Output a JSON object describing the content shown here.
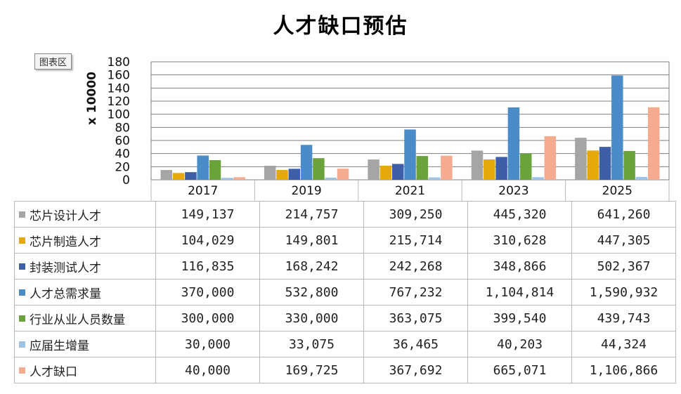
{
  "title": "人才缺口预估",
  "chart_area_label": "图表区",
  "chart_data": {
    "type": "bar",
    "title": "人才缺口预估",
    "ylabel": "x 10000",
    "ylim": [
      0,
      180
    ],
    "yticks": [
      0,
      20,
      40,
      60,
      80,
      100,
      120,
      140,
      160,
      180
    ],
    "grid": true,
    "categories": [
      "2017",
      "2019",
      "2021",
      "2023",
      "2025"
    ],
    "series": [
      {
        "name": "芯片设计人才",
        "color": "#a5a5a5",
        "values": [
          149137,
          214757,
          309250,
          445320,
          641260
        ],
        "display": [
          "149,137",
          "214,757",
          "309,250",
          "445,320",
          "641,260"
        ]
      },
      {
        "name": "芯片制造人才",
        "color": "#e6a90c",
        "values": [
          104029,
          149801,
          215714,
          310628,
          447305
        ],
        "display": [
          "104,029",
          "149,801",
          "215,714",
          "310,628",
          "447,305"
        ]
      },
      {
        "name": "封装测试人才",
        "color": "#3e5fa8",
        "values": [
          116835,
          168242,
          242268,
          348866,
          502367
        ],
        "display": [
          "116,835",
          "168,242",
          "242,268",
          "348,866",
          "502,367"
        ]
      },
      {
        "name": "人才总需求量",
        "color": "#4b8cc8",
        "values": [
          370000,
          532800,
          767232,
          1104814,
          1590932
        ],
        "display": [
          "370,000",
          "532,800",
          "767,232",
          "1,104,814",
          "1,590,932"
        ]
      },
      {
        "name": "行业从业人员数量",
        "color": "#6aa23c",
        "values": [
          300000,
          330000,
          363075,
          399540,
          439743
        ],
        "display": [
          "300,000",
          "330,000",
          "363,075",
          "399,540",
          "439,743"
        ]
      },
      {
        "name": "应届生增量",
        "color": "#9dc3e6",
        "values": [
          30000,
          33075,
          36465,
          40203,
          44324
        ],
        "display": [
          "30,000",
          "33,075",
          "36,465",
          "40,203",
          "44,324"
        ]
      },
      {
        "name": "人才缺口",
        "color": "#f4ab90",
        "values": [
          40000,
          169725,
          367692,
          665071,
          1106866
        ],
        "display": [
          "40,000",
          "169,725",
          "367,692",
          "665,071",
          "1,106,866"
        ]
      }
    ]
  }
}
